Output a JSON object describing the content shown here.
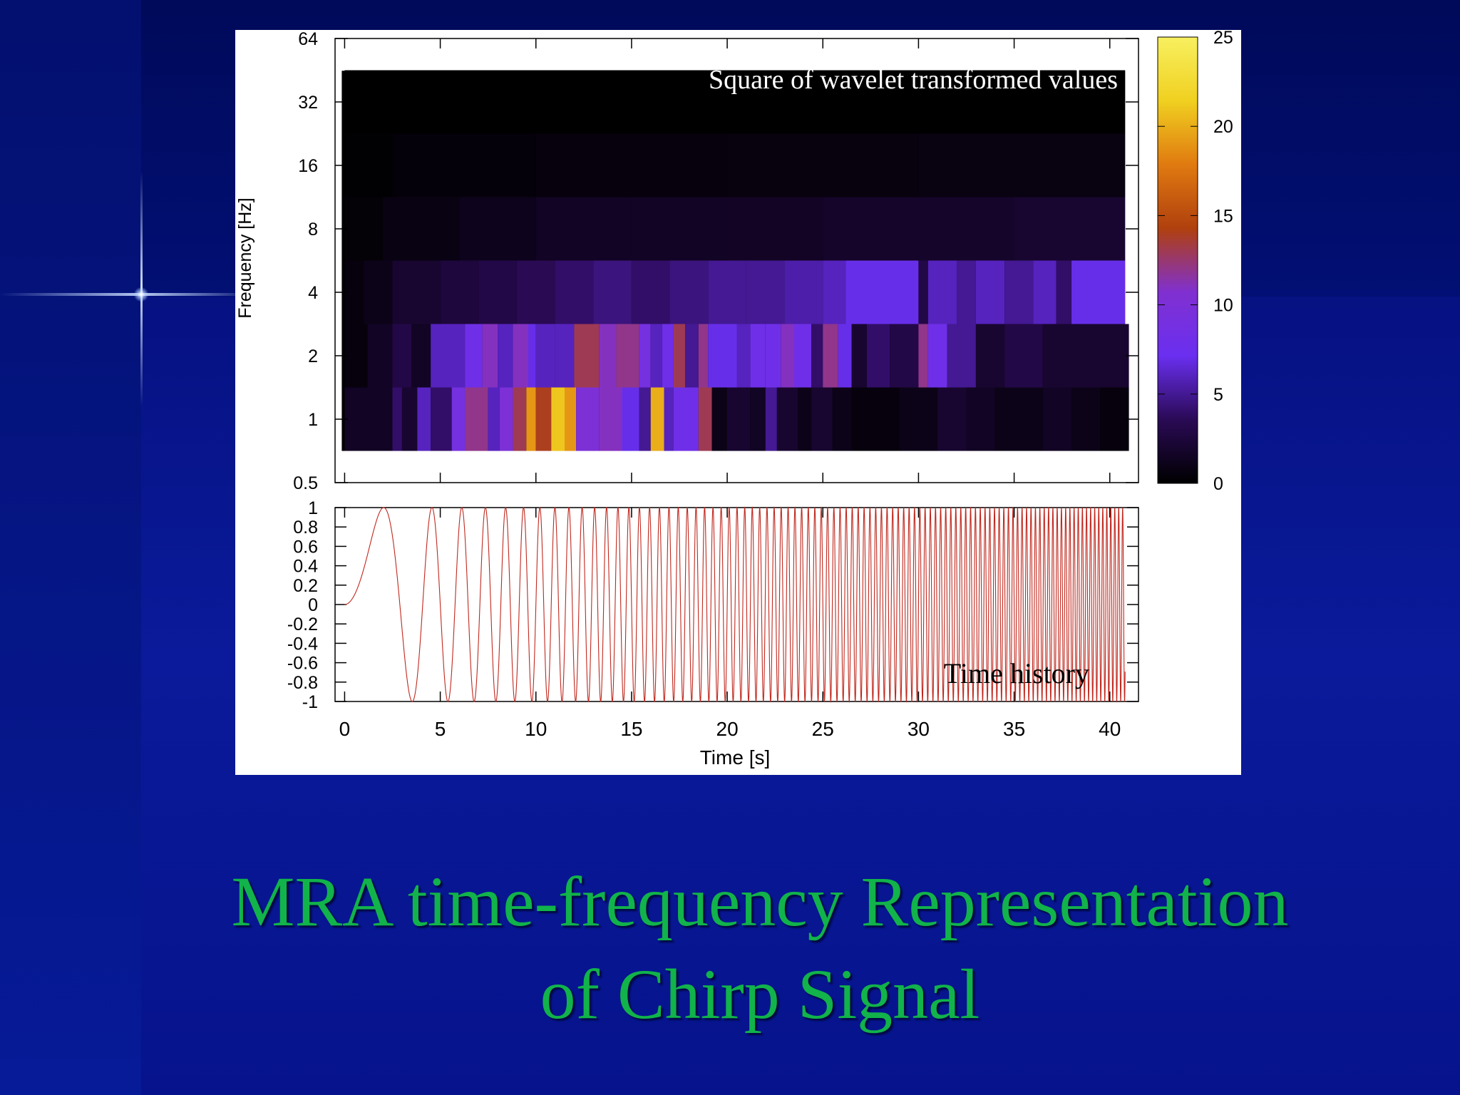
{
  "slide": {
    "title_line1": "MRA time-frequency Representation",
    "title_line2": "of Chirp Signal",
    "background_color": "#0a1a9a",
    "title_color": "#11b34a"
  },
  "chart_data": [
    {
      "type": "heatmap",
      "title": "Square of wavelet transformed values",
      "xlabel": "",
      "ylabel": "Frequency [Hz]",
      "xlim": [
        -0.5,
        41.5
      ],
      "ylim": [
        0.5,
        64
      ],
      "yscale": "log2",
      "x_ticks": [
        0,
        5,
        10,
        15,
        20,
        25,
        30,
        35,
        40
      ],
      "y_ticks": [
        "64",
        "32",
        "16",
        "8",
        "4",
        "2",
        "1",
        "0.5"
      ],
      "y_tick_values": [
        64,
        32,
        16,
        8,
        4,
        2,
        1,
        0.5
      ],
      "colorbar": {
        "range": [
          0,
          25
        ],
        "ticks": [
          "0",
          "5",
          "10",
          "15",
          "20",
          "25"
        ],
        "tick_values": [
          0,
          5,
          10,
          15,
          20,
          25
        ],
        "colormap": [
          "#000000",
          "#2a0a55",
          "#6a2ff0",
          "#8030d0",
          "#b0400e",
          "#e07a10",
          "#f0d020",
          "#f8f060"
        ]
      },
      "bands": [
        {
          "freq_hz": 1,
          "segments": [
            [
              0,
              2.5,
              1.5
            ],
            [
              2.5,
              3.0,
              4
            ],
            [
              3.0,
              3.8,
              2
            ],
            [
              3.8,
              4.5,
              6
            ],
            [
              4.5,
              5.6,
              4
            ],
            [
              5.6,
              6.3,
              9
            ],
            [
              6.3,
              7.5,
              12
            ],
            [
              7.5,
              8.1,
              6
            ],
            [
              8.1,
              8.8,
              10
            ],
            [
              8.8,
              9.5,
              13
            ],
            [
              9.5,
              10.0,
              19
            ],
            [
              10.0,
              10.8,
              14
            ],
            [
              10.8,
              11.5,
              21
            ],
            [
              11.5,
              12.1,
              19
            ],
            [
              12.1,
              13.3,
              10
            ],
            [
              13.3,
              14.5,
              11
            ],
            [
              14.5,
              15.4,
              7
            ],
            [
              15.4,
              16.0,
              5
            ],
            [
              16.0,
              16.7,
              20
            ],
            [
              16.7,
              17.2,
              6
            ],
            [
              17.2,
              18.5,
              8
            ],
            [
              18.5,
              19.2,
              13
            ],
            [
              19.2,
              20.0,
              1
            ],
            [
              20.0,
              21.2,
              2
            ],
            [
              21.2,
              22.0,
              1.5
            ],
            [
              22.0,
              22.6,
              5
            ],
            [
              22.6,
              23.7,
              2
            ],
            [
              23.7,
              24.4,
              1
            ],
            [
              24.4,
              25.5,
              2
            ],
            [
              25.5,
              26.5,
              1
            ],
            [
              26.5,
              29.0,
              0.5
            ],
            [
              29.0,
              31.0,
              1
            ],
            [
              31.0,
              32.5,
              2
            ],
            [
              32.5,
              34.0,
              1.5
            ],
            [
              34.0,
              36.5,
              1
            ],
            [
              36.5,
              38.0,
              1.5
            ],
            [
              38.0,
              39.5,
              1
            ],
            [
              39.5,
              41.0,
              0.5
            ]
          ]
        },
        {
          "freq_hz": 2,
          "segments": [
            [
              0,
              1.2,
              0.5
            ],
            [
              1.2,
              2.5,
              1.5
            ],
            [
              2.5,
              3.5,
              3
            ],
            [
              3.5,
              4.5,
              1.5
            ],
            [
              4.5,
              6.3,
              6
            ],
            [
              6.3,
              7.2,
              8
            ],
            [
              7.2,
              8.0,
              11
            ],
            [
              8.0,
              8.8,
              6
            ],
            [
              8.8,
              9.6,
              11
            ],
            [
              9.6,
              10.0,
              7
            ],
            [
              10.0,
              11.0,
              6
            ],
            [
              11.0,
              12.0,
              6
            ],
            [
              12.0,
              13.3,
              13
            ],
            [
              13.3,
              14.2,
              11
            ],
            [
              14.2,
              15.4,
              12
            ],
            [
              15.4,
              16.0,
              9
            ],
            [
              16.0,
              16.6,
              6
            ],
            [
              16.6,
              17.2,
              8
            ],
            [
              17.2,
              17.8,
              13
            ],
            [
              17.8,
              18.5,
              5
            ],
            [
              18.5,
              19.0,
              12
            ],
            [
              19.0,
              20.5,
              7
            ],
            [
              20.5,
              21.2,
              6
            ],
            [
              21.2,
              22.0,
              8
            ],
            [
              22.0,
              22.8,
              8
            ],
            [
              22.8,
              23.5,
              11
            ],
            [
              23.5,
              24.4,
              8
            ],
            [
              24.4,
              25.0,
              4
            ],
            [
              25.0,
              25.8,
              12
            ],
            [
              25.8,
              26.5,
              7
            ],
            [
              26.5,
              27.3,
              2
            ],
            [
              27.3,
              28.5,
              4
            ],
            [
              28.5,
              30.0,
              3
            ],
            [
              30.0,
              30.5,
              12
            ],
            [
              30.5,
              31.5,
              8
            ],
            [
              31.5,
              33.0,
              5
            ],
            [
              33.0,
              34.5,
              2
            ],
            [
              34.5,
              36.5,
              3
            ],
            [
              36.5,
              38.5,
              2
            ],
            [
              38.5,
              41.0,
              2
            ]
          ]
        },
        {
          "freq_hz": 4,
          "segments": [
            [
              0,
              1.0,
              0.5
            ],
            [
              1.0,
              2.5,
              1
            ],
            [
              2.5,
              5.0,
              2
            ],
            [
              5.0,
              7.0,
              2.5
            ],
            [
              7.0,
              9.0,
              3
            ],
            [
              9.0,
              11.0,
              3.5
            ],
            [
              11.0,
              13.0,
              4
            ],
            [
              13.0,
              15.0,
              4.5
            ],
            [
              15.0,
              17.0,
              4
            ],
            [
              17.0,
              19.0,
              4.5
            ],
            [
              19.0,
              21.0,
              5
            ],
            [
              21.0,
              23.0,
              5
            ],
            [
              23.0,
              25.0,
              5.5
            ],
            [
              25.0,
              26.2,
              6
            ],
            [
              26.2,
              30.0,
              7
            ],
            [
              30.0,
              30.5,
              3
            ],
            [
              30.5,
              32.0,
              6
            ],
            [
              32.0,
              33.0,
              5
            ],
            [
              33.0,
              34.5,
              6
            ],
            [
              34.5,
              36.0,
              5
            ],
            [
              36.0,
              37.2,
              6
            ],
            [
              37.2,
              38.0,
              4
            ],
            [
              38.0,
              40.8,
              7
            ]
          ]
        },
        {
          "freq_hz": 8,
          "segments": [
            [
              0,
              2.0,
              0.3
            ],
            [
              2.0,
              6.0,
              0.8
            ],
            [
              6.0,
              10.0,
              1.2
            ],
            [
              10.0,
              15.0,
              1.5
            ],
            [
              15.0,
              20.0,
              1.5
            ],
            [
              20.0,
              25.0,
              1.6
            ],
            [
              25.0,
              30.0,
              1.8
            ],
            [
              30.0,
              35.0,
              1.8
            ],
            [
              35.0,
              40.8,
              2
            ]
          ]
        },
        {
          "freq_hz": 16,
          "segments": [
            [
              0,
              2.5,
              0.1
            ],
            [
              2.5,
              10.0,
              0.4
            ],
            [
              10.0,
              20.0,
              0.5
            ],
            [
              20.0,
              30.0,
              0.6
            ],
            [
              30.0,
              40.8,
              0.7
            ]
          ]
        },
        {
          "freq_hz": 32,
          "segments": [
            [
              0,
              40.8,
              0.05
            ]
          ]
        }
      ]
    },
    {
      "type": "line",
      "title": "Time history",
      "xlabel": "Time [s]",
      "ylabel": "",
      "xlim": [
        -0.5,
        41.5
      ],
      "ylim": [
        -1,
        1
      ],
      "x_ticks": [
        "0",
        "5",
        "10",
        "15",
        "20",
        "25",
        "30",
        "35",
        "40"
      ],
      "x_tick_values": [
        0,
        5,
        10,
        15,
        20,
        25,
        30,
        35,
        40
      ],
      "y_ticks": [
        "1",
        "0.8",
        "0.6",
        "0.4",
        "0.2",
        "0",
        "-0.2",
        "-0.4",
        "-0.6",
        "-0.8",
        "-1"
      ],
      "y_tick_values": [
        1,
        0.8,
        0.6,
        0.4,
        0.2,
        0,
        -0.2,
        -0.4,
        -0.6,
        -0.8,
        -1
      ],
      "series": [
        {
          "color": "#c0281e",
          "function": "sin(2*pi*0.06*t^2)",
          "t_range": [
            0,
            40.8
          ]
        }
      ]
    }
  ]
}
